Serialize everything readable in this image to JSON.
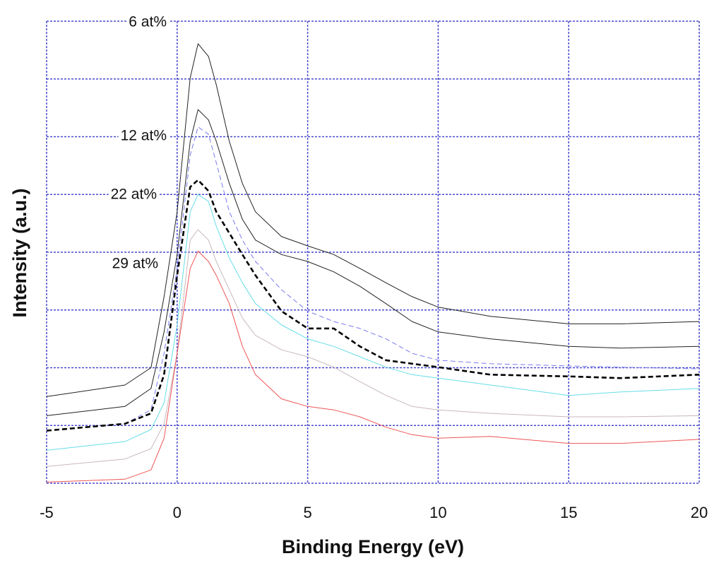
{
  "chart_data": {
    "type": "line",
    "x_label": "Binding Energy (eV)",
    "y_label": "Intensity (a.u.)",
    "xlim": [
      -5,
      20
    ],
    "xticks": [
      -5,
      0,
      5,
      10,
      15,
      20
    ],
    "ylim": [
      0,
      8
    ],
    "yticks": [
      0,
      1,
      2,
      3,
      4,
      5,
      6,
      7,
      8
    ],
    "grid": true,
    "grid_color": "#4a4acc",
    "annotations": [
      "6 at%",
      "12 at%",
      "22 at%",
      "29 at%"
    ],
    "x": [
      -5,
      -2,
      -1,
      -0.5,
      0,
      0.5,
      0.8,
      1.2,
      1.5,
      2,
      2.5,
      3,
      4,
      5,
      6,
      7,
      8,
      9,
      10,
      12,
      15,
      17,
      20
    ],
    "series": [
      {
        "color": "#222222",
        "dashed": false,
        "width": 1,
        "values": [
          1.5,
          1.7,
          2.0,
          3.23,
          4.7,
          7.02,
          7.61,
          7.39,
          6.9,
          5.92,
          5.19,
          4.7,
          4.27,
          4.11,
          3.96,
          3.72,
          3.47,
          3.23,
          3.05,
          2.89,
          2.76,
          2.76,
          2.8
        ]
      },
      {
        "color": "#222222",
        "dashed": false,
        "width": 1,
        "values": [
          1.17,
          1.33,
          1.64,
          2.62,
          3.96,
          5.92,
          6.47,
          6.29,
          5.92,
          5.19,
          4.57,
          4.21,
          3.96,
          3.84,
          3.66,
          3.41,
          3.11,
          2.8,
          2.62,
          2.5,
          2.37,
          2.34,
          2.37
        ]
      },
      {
        "color": "#7a7aee",
        "dashed": true,
        "width": 1,
        "values": [
          0.91,
          1.03,
          1.27,
          2.25,
          3.72,
          5.68,
          6.17,
          6.04,
          5.55,
          4.7,
          4.21,
          3.84,
          3.35,
          2.98,
          2.8,
          2.68,
          2.5,
          2.25,
          2.13,
          2.07,
          2.03,
          2.01,
          1.98
        ]
      },
      {
        "color": "#000000",
        "dashed": true,
        "width": 2.6,
        "values": [
          0.91,
          1.03,
          1.21,
          1.88,
          3.6,
          5.13,
          5.25,
          5.06,
          4.7,
          4.33,
          3.96,
          3.6,
          2.98,
          2.68,
          2.68,
          2.37,
          2.13,
          2.07,
          2.01,
          1.88,
          1.85,
          1.82,
          1.88
        ]
      },
      {
        "color": "#66dde8",
        "dashed": false,
        "width": 1,
        "values": [
          0.57,
          0.72,
          0.93,
          1.39,
          2.74,
          4.7,
          5.0,
          4.88,
          4.45,
          3.9,
          3.47,
          3.11,
          2.74,
          2.5,
          2.37,
          2.19,
          2.01,
          1.88,
          1.82,
          1.7,
          1.52,
          1.58,
          1.64
        ]
      },
      {
        "color": "#c8b8bc",
        "dashed": false,
        "width": 1,
        "values": [
          0.29,
          0.42,
          0.6,
          1.03,
          2.25,
          4.21,
          4.39,
          4.21,
          3.84,
          3.35,
          2.86,
          2.56,
          2.31,
          2.19,
          2.01,
          1.76,
          1.52,
          1.33,
          1.27,
          1.21,
          1.15,
          1.15,
          1.17
        ]
      },
      {
        "color": "#ee5555",
        "dashed": false,
        "width": 1,
        "values": [
          0.02,
          0.07,
          0.23,
          0.78,
          2.25,
          3.72,
          4.02,
          3.84,
          3.6,
          3.11,
          2.37,
          1.88,
          1.46,
          1.33,
          1.27,
          1.15,
          0.97,
          0.84,
          0.78,
          0.81,
          0.69,
          0.69,
          0.76
        ]
      }
    ]
  }
}
